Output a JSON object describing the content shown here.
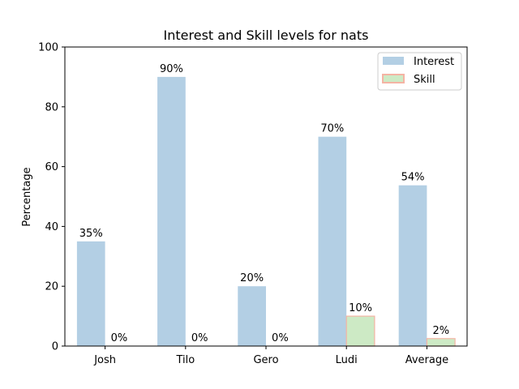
{
  "chart_data": {
    "type": "bar",
    "title": "Interest and Skill levels for nats",
    "xlabel": "",
    "ylabel": "Percentage",
    "ylim": [
      0,
      100
    ],
    "yticks": [
      0,
      20,
      40,
      60,
      80,
      100
    ],
    "categories": [
      "Josh",
      "Tilo",
      "Gero",
      "Ludi",
      "Average"
    ],
    "legend_position": "top-right",
    "series": [
      {
        "name": "Interest",
        "values": [
          35,
          90,
          20,
          70,
          53.75
        ],
        "labels": [
          "35%",
          "90%",
          "20%",
          "70%",
          "54%"
        ],
        "fill": "#b3cfe4",
        "edge": "#b3cfe4"
      },
      {
        "name": "Skill",
        "values": [
          0,
          0,
          0,
          10,
          2.5
        ],
        "labels": [
          "0%",
          "0%",
          "0%",
          "10%",
          "2%"
        ],
        "fill": "#cdeac5",
        "edge": "#f4b4a4"
      }
    ]
  }
}
